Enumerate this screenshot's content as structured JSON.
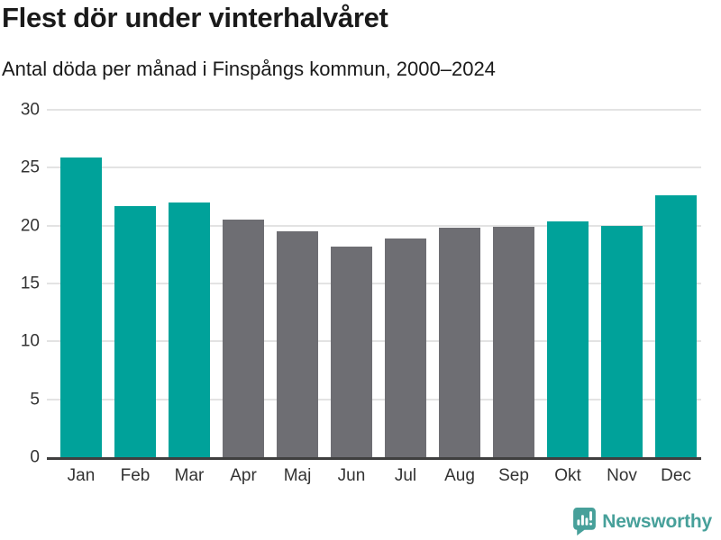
{
  "header": {
    "title": "Flest dör under vinterhalvåret",
    "subtitle": "Antal döda per månad i Finspångs kommun, 2000–2024"
  },
  "chart_data": {
    "type": "bar",
    "title": "Flest dör under vinterhalvåret",
    "subtitle": "Antal döda per månad i Finspångs kommun, 2000–2024",
    "categories": [
      "Jan",
      "Feb",
      "Mar",
      "Apr",
      "Maj",
      "Jun",
      "Jul",
      "Aug",
      "Sep",
      "Okt",
      "Nov",
      "Dec"
    ],
    "values": [
      25.9,
      21.7,
      22.0,
      20.5,
      19.5,
      18.2,
      18.9,
      19.8,
      19.9,
      20.4,
      20.0,
      22.6
    ],
    "bar_colors": [
      "#00a29a",
      "#00a29a",
      "#00a29a",
      "#6e6e73",
      "#6e6e73",
      "#6e6e73",
      "#6e6e73",
      "#6e6e73",
      "#6e6e73",
      "#00a29a",
      "#00a29a",
      "#00a29a"
    ],
    "highlight_months": [
      "Jan",
      "Feb",
      "Mar",
      "Okt",
      "Nov",
      "Dec"
    ],
    "xlabel": "",
    "ylabel": "",
    "ylim": [
      0,
      30
    ],
    "yticks": [
      0,
      5,
      10,
      15,
      20,
      25,
      30
    ],
    "grid": true,
    "legend": false
  },
  "colors": {
    "highlight_teal": "#00a29a",
    "neutral_gray": "#6e6e73",
    "gridline": "#e3e3e3",
    "axis_line": "#3f3f3f",
    "tick_text": "#333333",
    "title_text": "#1a1a1a",
    "logo_teal": "#47a09a"
  },
  "footer": {
    "brand_label": "Newsworthy",
    "logo_icon": "bar-chart-speech-bubble-icon"
  }
}
